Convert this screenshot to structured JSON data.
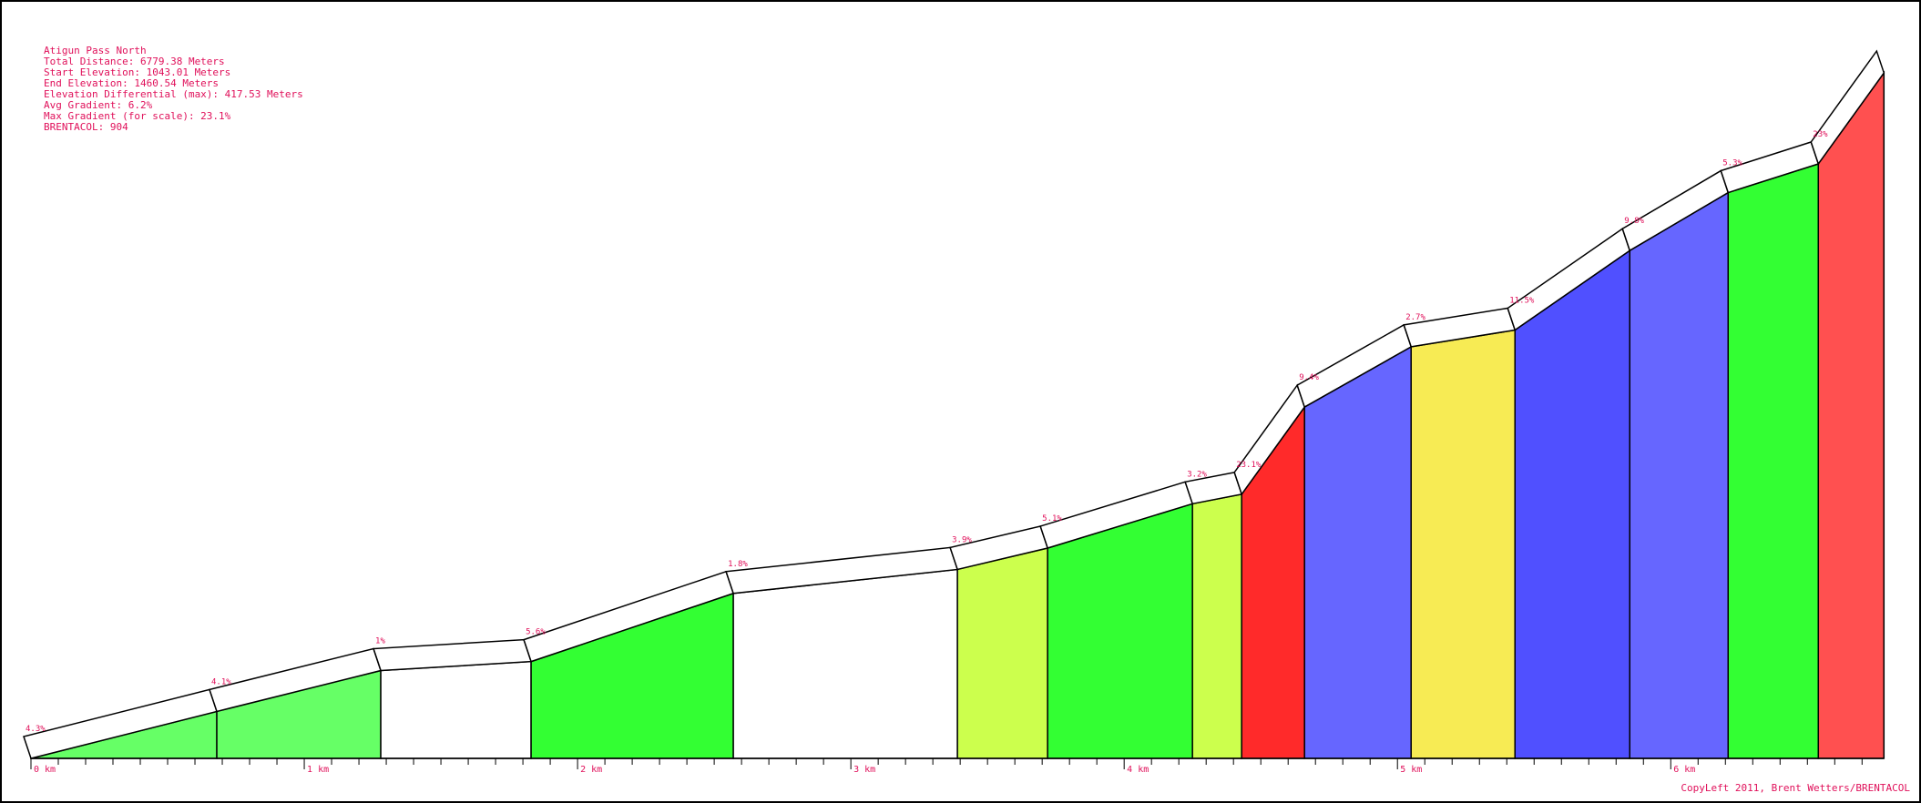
{
  "info": {
    "title": "Atigun Pass North",
    "lines": [
      "Total Distance: 6779.38 Meters",
      "Start Elevation: 1043.01 Meters",
      "End Elevation: 1460.54 Meters",
      "Elevation Differential (max): 417.53 Meters",
      "Avg Gradient: 6.2%",
      "Max Gradient (for scale): 23.1%",
      "BRENTACOL: 904"
    ]
  },
  "copyleft": "CopyLeft 2011, Brent Wetters/BRENTACOL",
  "chart_data": {
    "type": "area",
    "xlabel": "",
    "ylabel": "",
    "x_unit": "km",
    "xlim": [
      0,
      6.779
    ],
    "ylim": [
      1043.01,
      1460.54
    ],
    "x_ticks": [
      {
        "value": 0,
        "label": "0 km"
      },
      {
        "value": 1,
        "label": "1 km"
      },
      {
        "value": 2,
        "label": "2 km"
      },
      {
        "value": 3,
        "label": "3 km"
      },
      {
        "value": 4,
        "label": "4 km"
      },
      {
        "value": 5,
        "label": "5 km"
      },
      {
        "value": 6,
        "label": "6 km"
      }
    ],
    "segments": [
      {
        "start_km": 0.0,
        "end_km": 0.68,
        "start_elev": 1043.0,
        "end_elev": 1071.6,
        "label": "4.3%",
        "color": "#66ff66"
      },
      {
        "start_km": 0.68,
        "end_km": 1.28,
        "start_elev": 1071.6,
        "end_elev": 1096.5,
        "label": "4.1%",
        "color": "#66ff66"
      },
      {
        "start_km": 1.28,
        "end_km": 1.83,
        "start_elev": 1096.5,
        "end_elev": 1102.0,
        "label": "1%",
        "color": "#ffffff"
      },
      {
        "start_km": 1.83,
        "end_km": 2.57,
        "start_elev": 1102.0,
        "end_elev": 1143.5,
        "label": "5.6%",
        "color": "#33ff33"
      },
      {
        "start_km": 2.57,
        "end_km": 3.39,
        "start_elev": 1143.5,
        "end_elev": 1158.1,
        "label": "1.8%",
        "color": "#ffffff"
      },
      {
        "start_km": 3.39,
        "end_km": 3.72,
        "start_elev": 1158.1,
        "end_elev": 1171.1,
        "label": "3.9%",
        "color": "#ccff4d"
      },
      {
        "start_km": 3.72,
        "end_km": 4.25,
        "start_elev": 1171.1,
        "end_elev": 1198.1,
        "label": "5.1%",
        "color": "#33ff33"
      },
      {
        "start_km": 4.25,
        "end_km": 4.43,
        "start_elev": 1198.1,
        "end_elev": 1203.9,
        "label": "3.2%",
        "color": "#ccff4d"
      },
      {
        "start_km": 4.43,
        "end_km": 4.66,
        "start_elev": 1203.9,
        "end_elev": 1257.0,
        "label": "23.1%",
        "color": "#ff2a2a"
      },
      {
        "start_km": 4.66,
        "end_km": 5.05,
        "start_elev": 1257.0,
        "end_elev": 1293.7,
        "label": "9.4%",
        "color": "#6666ff"
      },
      {
        "start_km": 5.05,
        "end_km": 5.43,
        "start_elev": 1293.7,
        "end_elev": 1303.9,
        "label": "2.7%",
        "color": "#f7eb54"
      },
      {
        "start_km": 5.43,
        "end_km": 5.85,
        "start_elev": 1303.9,
        "end_elev": 1352.3,
        "label": "11.5%",
        "color": "#5050ff"
      },
      {
        "start_km": 5.85,
        "end_km": 6.21,
        "start_elev": 1352.3,
        "end_elev": 1387.6,
        "label": "9.8%",
        "color": "#6666ff"
      },
      {
        "start_km": 6.21,
        "end_km": 6.54,
        "start_elev": 1387.6,
        "end_elev": 1405.1,
        "label": "5.3%",
        "color": "#33ff33"
      },
      {
        "start_km": 6.54,
        "end_km": 6.78,
        "start_elev": 1405.1,
        "end_elev": 1460.5,
        "label": "23%",
        "color": "#ff5050"
      }
    ]
  }
}
